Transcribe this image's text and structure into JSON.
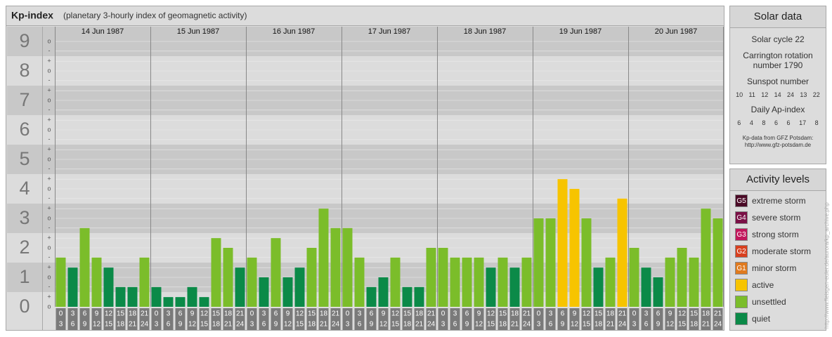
{
  "chart_data": {
    "type": "bar",
    "title": "Kp-index",
    "subtitle": "(planetary 3-hourly index of geomagnetic activity)",
    "days": [
      "14 Jun 1987",
      "15 Jun 1987",
      "16 Jun 1987",
      "17 Jun 1987",
      "18 Jun 1987",
      "19 Jun 1987",
      "20 Jun 1987"
    ],
    "hour_labels": [
      "0",
      "3",
      "6",
      "9",
      "12",
      "15",
      "18",
      "21",
      "24"
    ],
    "values": [
      1.67,
      1.33,
      2.67,
      1.67,
      1.33,
      0.67,
      0.67,
      1.67,
      0.67,
      0.33,
      0.33,
      0.67,
      0.33,
      2.33,
      2,
      1.33,
      1.67,
      1,
      2.33,
      1,
      1.33,
      2,
      3.33,
      2.67,
      2.67,
      1.67,
      0.67,
      1,
      1.67,
      0.67,
      0.67,
      2,
      2,
      1.67,
      1.67,
      1.67,
      1.33,
      1.67,
      1.33,
      1.67,
      3,
      3,
      4.33,
      4,
      3,
      1.33,
      1.67,
      3.67,
      2,
      1.33,
      1,
      1.67,
      2,
      1.67,
      3.33,
      3
    ],
    "colors": [
      "#7bbd2a",
      "#0b8a48",
      "#7bbd2a",
      "#7bbd2a",
      "#0b8a48",
      "#0b8a48",
      "#0b8a48",
      "#7bbd2a",
      "#0b8a48",
      "#0b8a48",
      "#0b8a48",
      "#0b8a48",
      "#0b8a48",
      "#7bbd2a",
      "#7bbd2a",
      "#0b8a48",
      "#7bbd2a",
      "#0b8a48",
      "#7bbd2a",
      "#0b8a48",
      "#0b8a48",
      "#7bbd2a",
      "#7bbd2a",
      "#7bbd2a",
      "#7bbd2a",
      "#7bbd2a",
      "#0b8a48",
      "#0b8a48",
      "#7bbd2a",
      "#0b8a48",
      "#0b8a48",
      "#7bbd2a",
      "#7bbd2a",
      "#7bbd2a",
      "#7bbd2a",
      "#7bbd2a",
      "#0b8a48",
      "#7bbd2a",
      "#0b8a48",
      "#7bbd2a",
      "#7bbd2a",
      "#7bbd2a",
      "#f7c400",
      "#f7c400",
      "#7bbd2a",
      "#0b8a48",
      "#7bbd2a",
      "#f7c400",
      "#7bbd2a",
      "#0b8a48",
      "#0b8a48",
      "#7bbd2a",
      "#7bbd2a",
      "#7bbd2a",
      "#7bbd2a",
      "#7bbd2a"
    ],
    "ylim": [
      0,
      9.5
    ],
    "yticks": [
      0,
      1,
      2,
      3,
      4,
      5,
      6,
      7,
      8,
      9
    ],
    "minor_ticks": [
      {
        "value": 0,
        "label": "o"
      },
      {
        "value": 0.33,
        "label": "+"
      },
      {
        "value": 0.67,
        "label": "-"
      },
      {
        "value": 1,
        "label": "o"
      },
      {
        "value": 1.33,
        "label": "+"
      },
      {
        "value": 1.67,
        "label": "-"
      },
      {
        "value": 2,
        "label": "o"
      },
      {
        "value": 2.33,
        "label": "+"
      },
      {
        "value": 2.67,
        "label": "-"
      },
      {
        "value": 3,
        "label": "o"
      },
      {
        "value": 3.33,
        "label": "+"
      },
      {
        "value": 3.67,
        "label": "-"
      },
      {
        "value": 4,
        "label": "o"
      },
      {
        "value": 4.33,
        "label": "+"
      },
      {
        "value": 4.67,
        "label": "-"
      },
      {
        "value": 5,
        "label": "o"
      },
      {
        "value": 5.33,
        "label": "+"
      },
      {
        "value": 5.67,
        "label": "-"
      },
      {
        "value": 6,
        "label": "o"
      },
      {
        "value": 6.33,
        "label": "+"
      },
      {
        "value": 6.67,
        "label": "-"
      },
      {
        "value": 7,
        "label": "o"
      },
      {
        "value": 7.33,
        "label": "+"
      },
      {
        "value": 7.67,
        "label": "-"
      },
      {
        "value": 8,
        "label": "o"
      },
      {
        "value": 8.33,
        "label": "+"
      },
      {
        "value": 8.67,
        "label": "-"
      },
      {
        "value": 9,
        "label": "o"
      }
    ],
    "grid": true
  },
  "solar_data": {
    "title": "Solar data",
    "solar_cycle": "Solar cycle 22",
    "carrington": "Carrington rotation number 1790",
    "sunspot_title": "Sunspot number",
    "sunspot_numbers": [
      10,
      11,
      12,
      14,
      24,
      13,
      22
    ],
    "ap_title": "Daily Ap-index",
    "ap_values": [
      6,
      4,
      8,
      6,
      6,
      17,
      8
    ],
    "source": "Kp-data from GFZ Potsdam:",
    "source_url": "http://www.gfz-potsdam.de"
  },
  "activity_levels": {
    "title": "Activity levels",
    "items": [
      {
        "badge": "G5",
        "label": "extreme storm",
        "color": "#4a0a26"
      },
      {
        "badge": "G4",
        "label": "severe storm",
        "color": "#7a1046"
      },
      {
        "badge": "G3",
        "label": "strong storm",
        "color": "#c2175c"
      },
      {
        "badge": "G2",
        "label": "moderate storm",
        "color": "#d8401e"
      },
      {
        "badge": "G1",
        "label": "minor storm",
        "color": "#e07a1e"
      },
      {
        "label": "active",
        "color": "#f7c400"
      },
      {
        "label": "unsettled",
        "color": "#7bbd2a"
      },
      {
        "label": "quiet",
        "color": "#0b8a48"
      }
    ]
  },
  "side_note": "http://www.fleisgen-euler.de/aurora/kp_archive.php"
}
